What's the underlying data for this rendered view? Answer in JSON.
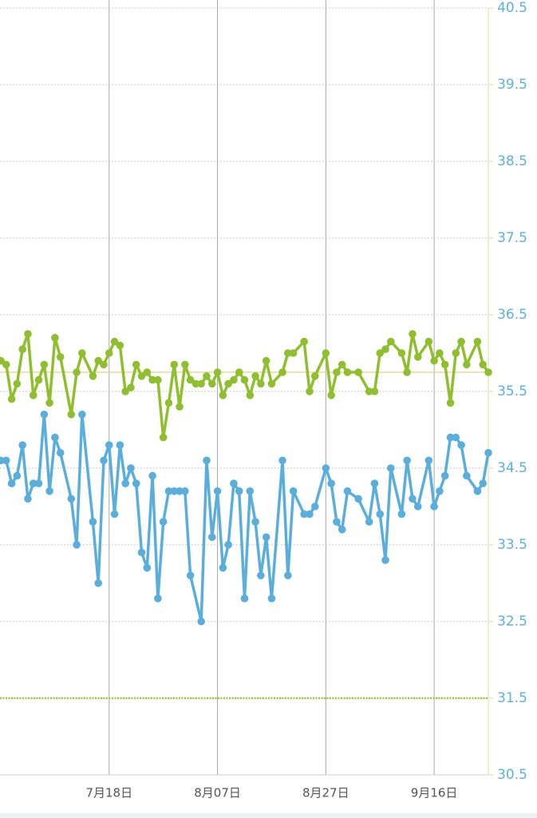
{
  "chart_data": {
    "type": "line",
    "ylim": [
      30.5,
      40.5
    ],
    "yticks": [
      30.5,
      31.5,
      32.5,
      33.5,
      34.5,
      35.5,
      36.5,
      37.5,
      38.5,
      39.5,
      40.5
    ],
    "xlim": [
      "6月28日",
      "9月26日"
    ],
    "xticks": [
      "7月18日",
      "8月07日",
      "8月27日",
      "9月16日"
    ],
    "grid": true,
    "reference_lines": [
      {
        "value": 35.75,
        "color": "#eadb8f",
        "style": "solid"
      },
      {
        "value": 31.5,
        "color": "#9cc83e",
        "style": "dotted"
      }
    ],
    "series": [
      {
        "color": "#5aaedc",
        "x": [
          "6月28日",
          "6月29日",
          "6月30日",
          "7月01日",
          "7月02日",
          "7月03日",
          "7月04日",
          "7月05日",
          "7月06日",
          "7月07日",
          "7月08日",
          "7月09日",
          "7月11日",
          "7月12日",
          "7月13日",
          "7月15日",
          "7月16日",
          "7月17日",
          "7月18日",
          "7月19日",
          "7月20日",
          "7月21日",
          "7月22日",
          "7月23日",
          "7月24日",
          "7月25日",
          "7月26日",
          "7月27日",
          "7月28日",
          "7月29日",
          "7月30日",
          "7月31日",
          "8月01日",
          "8月02日",
          "8月04日",
          "8月05日",
          "8月06日",
          "8月07日",
          "8月08日",
          "8月09日",
          "8月10日",
          "8月11日",
          "8月12日",
          "8月13日",
          "8月14日",
          "8月15日",
          "8月16日",
          "8月17日",
          "8月19日",
          "8月20日",
          "8月21日",
          "8月23日",
          "8月24日",
          "8月25日",
          "8月27日",
          "8月28日",
          "8月29日",
          "8月30日",
          "8月31日",
          "9月02日",
          "9月04日",
          "9月05日",
          "9月06日",
          "9月07日",
          "9月08日",
          "9月10日",
          "9月11日",
          "9月12日",
          "9月13日",
          "9月15日",
          "9月16日",
          "9月17日",
          "9月18日",
          "9月19日",
          "9月20日",
          "9月21日",
          "9月22日",
          "9月24日",
          "9月25日",
          "9月26日"
        ],
        "values": [
          34.6,
          34.6,
          34.3,
          34.4,
          34.8,
          34.1,
          34.3,
          34.3,
          35.2,
          34.2,
          34.9,
          34.7,
          34.1,
          33.5,
          35.2,
          33.8,
          33.0,
          34.6,
          34.8,
          33.9,
          34.8,
          34.3,
          34.5,
          34.3,
          33.4,
          33.2,
          34.4,
          32.8,
          33.8,
          34.2,
          34.2,
          34.2,
          34.2,
          33.1,
          32.5,
          34.6,
          33.6,
          34.2,
          33.2,
          33.5,
          34.3,
          34.2,
          32.8,
          34.2,
          33.8,
          33.1,
          33.6,
          32.8,
          34.6,
          33.1,
          34.2,
          33.9,
          33.9,
          34.0,
          34.5,
          34.3,
          33.8,
          33.7,
          34.2,
          34.1,
          33.8,
          34.3,
          33.9,
          33.3,
          34.5,
          33.9,
          34.6,
          34.1,
          34.0,
          34.6,
          34.0,
          34.2,
          34.4,
          34.9,
          34.9,
          34.8,
          34.4,
          34.2,
          34.3,
          34.7
        ]
      },
      {
        "color": "#8fbf2f",
        "x": [
          "6月28日",
          "6月29日",
          "6月30日",
          "7月01日",
          "7月02日",
          "7月03日",
          "7月04日",
          "7月05日",
          "7月06日",
          "7月07日",
          "7月08日",
          "7月09日",
          "7月11日",
          "7月12日",
          "7月13日",
          "7月15日",
          "7月16日",
          "7月17日",
          "7月18日",
          "7月19日",
          "7月20日",
          "7月21日",
          "7月22日",
          "7月23日",
          "7月24日",
          "7月25日",
          "7月26日",
          "7月27日",
          "7月28日",
          "7月29日",
          "7月30日",
          "7月31日",
          "8月01日",
          "8月02日",
          "8月03日",
          "8月04日",
          "8月05日",
          "8月06日",
          "8月07日",
          "8月08日",
          "8月09日",
          "8月10日",
          "8月11日",
          "8月12日",
          "8月13日",
          "8月14日",
          "8月15日",
          "8月16日",
          "8月17日",
          "8月19日",
          "8月20日",
          "8月21日",
          "8月23日",
          "8月24日",
          "8月25日",
          "8月27日",
          "8月28日",
          "8月29日",
          "8月30日",
          "8月31日",
          "9月02日",
          "9月04日",
          "9月05日",
          "9月06日",
          "9月07日",
          "9月08日",
          "9月10日",
          "9月11日",
          "9月12日",
          "9月13日",
          "9月15日",
          "9月16日",
          "9月17日",
          "9月18日",
          "9月19日",
          "9月20日",
          "9月21日",
          "9月22日",
          "9月24日",
          "9月25日",
          "9月26日"
        ],
        "values": [
          35.9,
          35.85,
          35.4,
          35.6,
          36.05,
          36.25,
          35.45,
          35.65,
          35.85,
          35.35,
          36.2,
          35.95,
          35.2,
          35.75,
          36.0,
          35.7,
          35.9,
          35.85,
          36.0,
          36.15,
          36.1,
          35.5,
          35.55,
          35.85,
          35.7,
          35.75,
          35.65,
          35.65,
          34.9,
          35.35,
          35.85,
          35.3,
          35.85,
          35.65,
          35.6,
          35.6,
          35.7,
          35.6,
          35.75,
          35.45,
          35.6,
          35.65,
          35.75,
          35.65,
          35.45,
          35.7,
          35.6,
          35.9,
          35.6,
          35.75,
          36.0,
          36.0,
          36.15,
          35.5,
          35.7,
          36.0,
          35.45,
          35.75,
          35.85,
          35.75,
          35.75,
          35.5,
          35.5,
          36.0,
          36.05,
          36.15,
          36.0,
          35.75,
          36.25,
          35.95,
          36.15,
          35.9,
          36.0,
          35.85,
          35.35,
          36.0,
          36.15,
          35.85,
          36.15,
          35.85,
          35.75
        ]
      }
    ]
  }
}
